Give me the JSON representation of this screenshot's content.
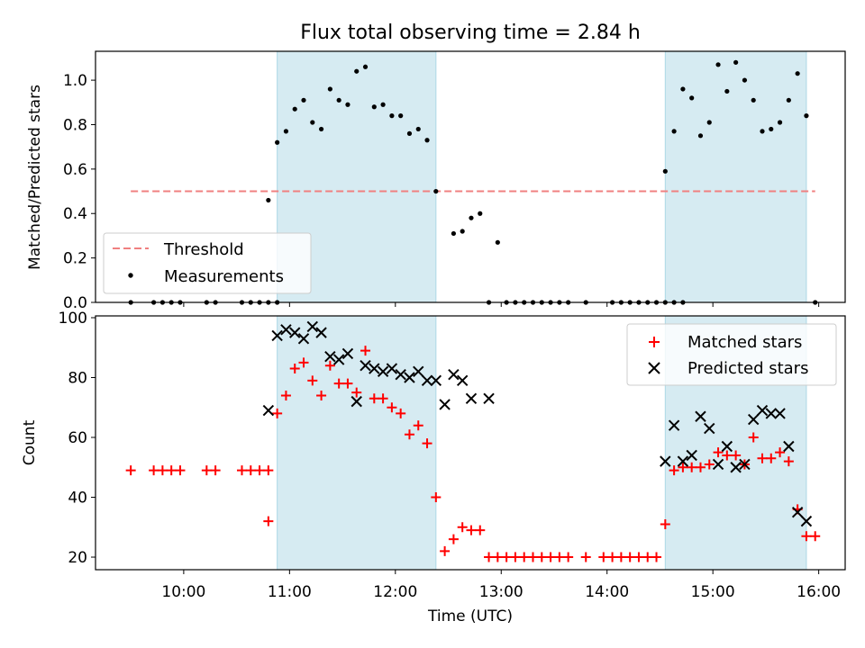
{
  "title": "Flux total observing time = 2.84 h",
  "colors": {
    "shade": "#add8e6",
    "threshold": "#f08080",
    "matched": "#ff0000",
    "predicted": "#000000",
    "measurements": "#000000"
  },
  "chart_data": [
    {
      "type": "scatter",
      "ylabel": "Matched/Predicted stars",
      "xlim": [
        "09:10",
        "16:15"
      ],
      "ylim": [
        0,
        1.13
      ],
      "yticks": [
        "0.0",
        "0.2",
        "0.4",
        "0.6",
        "0.8",
        "1.0"
      ],
      "grid": false,
      "legend_position": "lower-left",
      "legend": [
        "Threshold",
        "Measurements"
      ],
      "shaded_intervals": [
        [
          "10:53",
          "12:23"
        ],
        [
          "14:33",
          "15:53"
        ]
      ],
      "threshold": {
        "name": "Threshold",
        "value": 0.5,
        "x_range": [
          "09:30",
          "15:58"
        ]
      },
      "series": [
        {
          "name": "Measurements",
          "points": [
            [
              "09:30",
              0
            ],
            [
              "09:43",
              0
            ],
            [
              "09:48",
              0
            ],
            [
              "09:53",
              0
            ],
            [
              "09:58",
              0
            ],
            [
              "10:13",
              0
            ],
            [
              "10:18",
              0
            ],
            [
              "10:33",
              0
            ],
            [
              "10:38",
              0
            ],
            [
              "10:43",
              0
            ],
            [
              "10:48",
              0
            ],
            [
              "10:53",
              0
            ],
            [
              "10:48",
              0.46
            ],
            [
              "10:53",
              0.72
            ],
            [
              "10:58",
              0.77
            ],
            [
              "11:03",
              0.87
            ],
            [
              "11:08",
              0.91
            ],
            [
              "11:13",
              0.81
            ],
            [
              "11:18",
              0.78
            ],
            [
              "11:23",
              0.96
            ],
            [
              "11:28",
              0.91
            ],
            [
              "11:33",
              0.89
            ],
            [
              "11:38",
              1.04
            ],
            [
              "11:43",
              1.06
            ],
            [
              "11:48",
              0.88
            ],
            [
              "11:53",
              0.89
            ],
            [
              "11:58",
              0.84
            ],
            [
              "12:03",
              0.84
            ],
            [
              "12:08",
              0.76
            ],
            [
              "12:13",
              0.78
            ],
            [
              "12:18",
              0.73
            ],
            [
              "12:23",
              0.5
            ],
            [
              "12:33",
              0.31
            ],
            [
              "12:38",
              0.32
            ],
            [
              "12:43",
              0.38
            ],
            [
              "12:48",
              0.4
            ],
            [
              "12:53",
              0
            ],
            [
              "12:58",
              0.27
            ],
            [
              "13:03",
              0
            ],
            [
              "13:08",
              0
            ],
            [
              "13:13",
              0
            ],
            [
              "13:18",
              0
            ],
            [
              "13:23",
              0
            ],
            [
              "13:28",
              0
            ],
            [
              "13:33",
              0
            ],
            [
              "13:38",
              0
            ],
            [
              "13:48",
              0
            ],
            [
              "14:03",
              0
            ],
            [
              "14:08",
              0
            ],
            [
              "14:13",
              0
            ],
            [
              "14:18",
              0
            ],
            [
              "14:23",
              0
            ],
            [
              "14:28",
              0
            ],
            [
              "14:33",
              0
            ],
            [
              "14:38",
              0
            ],
            [
              "14:43",
              0
            ],
            [
              "14:33",
              0.59
            ],
            [
              "14:38",
              0.77
            ],
            [
              "14:43",
              0.96
            ],
            [
              "14:48",
              0.92
            ],
            [
              "14:53",
              0.75
            ],
            [
              "14:58",
              0.81
            ],
            [
              "15:03",
              1.07
            ],
            [
              "15:08",
              0.95
            ],
            [
              "15:13",
              1.08
            ],
            [
              "15:18",
              1.0
            ],
            [
              "15:23",
              0.91
            ],
            [
              "15:28",
              0.77
            ],
            [
              "15:33",
              0.78
            ],
            [
              "15:38",
              0.81
            ],
            [
              "15:43",
              0.91
            ],
            [
              "15:48",
              1.03
            ],
            [
              "15:53",
              0.84
            ],
            [
              "15:58",
              0
            ]
          ]
        }
      ]
    },
    {
      "type": "scatter",
      "xlabel": "Time (UTC)",
      "ylabel": "Count",
      "xlim": [
        "09:10",
        "16:15"
      ],
      "xticks": [
        "10:00",
        "11:00",
        "12:00",
        "13:00",
        "14:00",
        "15:00",
        "16:00"
      ],
      "ylim": [
        15.8,
        100.6
      ],
      "yticks": [
        "20",
        "40",
        "60",
        "80",
        "100"
      ],
      "grid": false,
      "legend_position": "upper-right",
      "legend": [
        "Matched stars",
        "Predicted stars"
      ],
      "shaded_intervals": [
        [
          "10:53",
          "12:23"
        ],
        [
          "14:33",
          "15:53"
        ]
      ],
      "series": [
        {
          "name": "Matched stars",
          "marker": "+",
          "points": [
            [
              "09:30",
              49
            ],
            [
              "09:43",
              49
            ],
            [
              "09:48",
              49
            ],
            [
              "09:53",
              49
            ],
            [
              "09:58",
              49
            ],
            [
              "10:13",
              49
            ],
            [
              "10:18",
              49
            ],
            [
              "10:33",
              49
            ],
            [
              "10:38",
              49
            ],
            [
              "10:43",
              49
            ],
            [
              "10:48",
              49
            ],
            [
              "10:48",
              32
            ],
            [
              "10:53",
              68
            ],
            [
              "10:58",
              74
            ],
            [
              "11:03",
              83
            ],
            [
              "11:08",
              85
            ],
            [
              "11:13",
              79
            ],
            [
              "11:18",
              74
            ],
            [
              "11:23",
              84
            ],
            [
              "11:28",
              78
            ],
            [
              "11:33",
              78
            ],
            [
              "11:38",
              75
            ],
            [
              "11:43",
              89
            ],
            [
              "11:48",
              73
            ],
            [
              "11:53",
              73
            ],
            [
              "11:58",
              70
            ],
            [
              "12:03",
              68
            ],
            [
              "12:08",
              61
            ],
            [
              "12:13",
              64
            ],
            [
              "12:18",
              58
            ],
            [
              "12:23",
              40
            ],
            [
              "12:28",
              22
            ],
            [
              "12:33",
              26
            ],
            [
              "12:38",
              30
            ],
            [
              "12:43",
              29
            ],
            [
              "12:48",
              29
            ],
            [
              "12:53",
              20
            ],
            [
              "12:58",
              20
            ],
            [
              "13:03",
              20
            ],
            [
              "13:08",
              20
            ],
            [
              "13:13",
              20
            ],
            [
              "13:18",
              20
            ],
            [
              "13:23",
              20
            ],
            [
              "13:28",
              20
            ],
            [
              "13:33",
              20
            ],
            [
              "13:38",
              20
            ],
            [
              "13:48",
              20
            ],
            [
              "13:58",
              20
            ],
            [
              "14:03",
              20
            ],
            [
              "14:08",
              20
            ],
            [
              "14:13",
              20
            ],
            [
              "14:18",
              20
            ],
            [
              "14:23",
              20
            ],
            [
              "14:28",
              20
            ],
            [
              "14:33",
              31
            ],
            [
              "14:38",
              49
            ],
            [
              "14:43",
              50
            ],
            [
              "14:48",
              50
            ],
            [
              "14:53",
              50
            ],
            [
              "14:58",
              51
            ],
            [
              "15:03",
              55
            ],
            [
              "15:08",
              54
            ],
            [
              "15:13",
              54
            ],
            [
              "15:18",
              51
            ],
            [
              "15:23",
              60
            ],
            [
              "15:28",
              53
            ],
            [
              "15:33",
              53
            ],
            [
              "15:38",
              55
            ],
            [
              "15:43",
              52
            ],
            [
              "15:48",
              36
            ],
            [
              "15:53",
              27
            ],
            [
              "15:58",
              27
            ]
          ]
        },
        {
          "name": "Predicted stars",
          "marker": "x",
          "points": [
            [
              "10:48",
              69
            ],
            [
              "10:53",
              94
            ],
            [
              "10:58",
              96
            ],
            [
              "11:03",
              95
            ],
            [
              "11:08",
              93
            ],
            [
              "11:13",
              97
            ],
            [
              "11:18",
              95
            ],
            [
              "11:23",
              87
            ],
            [
              "11:28",
              86
            ],
            [
              "11:33",
              88
            ],
            [
              "11:38",
              72
            ],
            [
              "11:43",
              84
            ],
            [
              "11:48",
              83
            ],
            [
              "11:53",
              82
            ],
            [
              "11:58",
              83
            ],
            [
              "12:03",
              81
            ],
            [
              "12:08",
              80
            ],
            [
              "12:13",
              82
            ],
            [
              "12:18",
              79
            ],
            [
              "12:23",
              79
            ],
            [
              "12:28",
              71
            ],
            [
              "12:33",
              81
            ],
            [
              "12:38",
              79
            ],
            [
              "12:43",
              73
            ],
            [
              "12:53",
              73
            ],
            [
              "14:33",
              52
            ],
            [
              "14:38",
              64
            ],
            [
              "14:43",
              52
            ],
            [
              "14:48",
              54
            ],
            [
              "14:53",
              67
            ],
            [
              "14:58",
              63
            ],
            [
              "15:03",
              51
            ],
            [
              "15:08",
              57
            ],
            [
              "15:13",
              50
            ],
            [
              "15:18",
              51
            ],
            [
              "15:23",
              66
            ],
            [
              "15:28",
              69
            ],
            [
              "15:33",
              68
            ],
            [
              "15:38",
              68
            ],
            [
              "15:43",
              57
            ],
            [
              "15:48",
              35
            ],
            [
              "15:53",
              32
            ]
          ]
        }
      ]
    }
  ]
}
